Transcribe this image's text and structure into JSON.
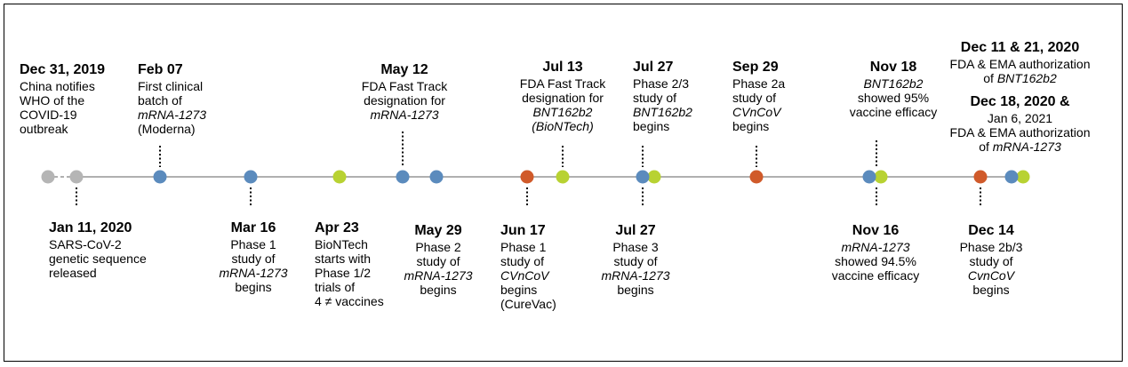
{
  "colors": {
    "grey": "#b5b5b5",
    "blue": "#5b8bbd",
    "lime": "#b8d232",
    "orange": "#d05a2a",
    "axis": "#b0b0b0",
    "connector": "#000000"
  },
  "events": [
    {
      "id": "dec-31-2019",
      "date": "Dec 31, 2019",
      "lines": [
        {
          "text": "China notifies",
          "italic": false
        },
        {
          "text": "WHO of the",
          "italic": false
        },
        {
          "text": "COVID-19",
          "italic": false
        },
        {
          "text": "outbreak",
          "italic": false
        }
      ]
    },
    {
      "id": "feb-07",
      "date": "Feb 07",
      "lines": [
        {
          "text": "First clinical",
          "italic": false
        },
        {
          "text": "batch of",
          "italic": false
        },
        {
          "text": "mRNA-1273",
          "italic": true
        },
        {
          "text": "(Moderna)",
          "italic": false
        }
      ]
    },
    {
      "id": "may-12",
      "date": "May 12",
      "lines": [
        {
          "text": "FDA Fast Track",
          "italic": false
        },
        {
          "text": "designation for",
          "italic": false
        },
        {
          "text": "mRNA-1273",
          "italic": true
        }
      ]
    },
    {
      "id": "jul-13",
      "date": "Jul 13",
      "lines": [
        {
          "text": "FDA Fast Track",
          "italic": false
        },
        {
          "text": "designation for",
          "italic": false
        },
        {
          "text": "BNT162b2",
          "italic": true
        },
        {
          "text": "(BioNTech)",
          "italic": true
        }
      ]
    },
    {
      "id": "jul-27-top",
      "date": "Jul 27",
      "lines": [
        {
          "text": "Phase 2/3",
          "italic": false
        },
        {
          "text": "study of",
          "italic": false
        },
        {
          "text": "BNT162b2",
          "italic": true
        },
        {
          "text": "begins",
          "italic": false
        }
      ]
    },
    {
      "id": "sep-29",
      "date": "Sep 29",
      "lines": [
        {
          "text": "Phase 2a",
          "italic": false
        },
        {
          "text": "study of",
          "italic": false
        },
        {
          "text": "CVnCoV",
          "italic": true
        },
        {
          "text": "begins",
          "italic": false
        }
      ]
    },
    {
      "id": "nov-18",
      "date": "Nov 18",
      "lines": [
        {
          "text": "BNT162b2",
          "italic": true
        },
        {
          "text": "showed 95%",
          "italic": false
        },
        {
          "text": "vaccine efficacy",
          "italic": false
        }
      ]
    },
    {
      "id": "dec-11-21",
      "date": "Dec 11 & 21, 2020",
      "lines": [
        {
          "text": "FDA & EMA authorization",
          "italic": false
        },
        {
          "text": "of BNT162b2",
          "italic": false
        }
      ]
    },
    {
      "id": "dec-18-jan-6",
      "date": "Dec 18, 2020 &",
      "lines": [
        {
          "text": "Jan 6, 2021",
          "italic": false
        },
        {
          "text": "FDA & EMA authorization",
          "italic": false
        },
        {
          "text": "of mRNA-1273",
          "italic": false
        }
      ]
    },
    {
      "id": "jan-11-2020",
      "date": "Jan 11, 2020",
      "lines": [
        {
          "text": "SARS-CoV-2",
          "italic": false
        },
        {
          "text": "genetic sequence",
          "italic": false
        },
        {
          "text": "released",
          "italic": false
        }
      ]
    },
    {
      "id": "mar-16",
      "date": "Mar 16",
      "lines": [
        {
          "text": "Phase 1",
          "italic": false
        },
        {
          "text": "study of",
          "italic": false
        },
        {
          "text": "mRNA-1273",
          "italic": true
        },
        {
          "text": "begins",
          "italic": false
        }
      ]
    },
    {
      "id": "apr-23",
      "date": "Apr 23",
      "lines": [
        {
          "text": "BioNTech",
          "italic": false
        },
        {
          "text": "starts with",
          "italic": false
        },
        {
          "text": "Phase 1/2",
          "italic": false
        },
        {
          "text": "trials of",
          "italic": false
        },
        {
          "text": "4 ≠ vaccines",
          "italic": false
        }
      ]
    },
    {
      "id": "may-29",
      "date": "May 29",
      "lines": [
        {
          "text": "Phase 2",
          "italic": false
        },
        {
          "text": "study of",
          "italic": false
        },
        {
          "text": "mRNA-1273",
          "italic": true
        },
        {
          "text": "begins",
          "italic": false
        }
      ]
    },
    {
      "id": "jun-17",
      "date": "Jun 17",
      "lines": [
        {
          "text": "Phase 1",
          "italic": false
        },
        {
          "text": "study of",
          "italic": false
        },
        {
          "text": "CVnCoV",
          "italic": true
        },
        {
          "text": "begins",
          "italic": false
        },
        {
          "text": "(CureVac)",
          "italic": false
        }
      ]
    },
    {
      "id": "jul-27-bottom",
      "date": "Jul 27",
      "lines": [
        {
          "text": "Phase 3",
          "italic": false
        },
        {
          "text": "study of",
          "italic": false
        },
        {
          "text": "mRNA-1273",
          "italic": true
        },
        {
          "text": "begins",
          "italic": false
        }
      ]
    },
    {
      "id": "nov-16",
      "date": "Nov 16",
      "lines": [
        {
          "text": "mRNA-1273",
          "italic": true
        },
        {
          "text": "showed 94.5%",
          "italic": false
        },
        {
          "text": "vaccine efficacy",
          "italic": false
        }
      ]
    },
    {
      "id": "dec-14",
      "date": "Dec 14",
      "lines": [
        {
          "text": "Phase 2b/3",
          "italic": false
        },
        {
          "text": "study of",
          "italic": false
        },
        {
          "text": "CvnCoV",
          "italic": true
        },
        {
          "text": "begins",
          "italic": false
        }
      ]
    }
  ]
}
